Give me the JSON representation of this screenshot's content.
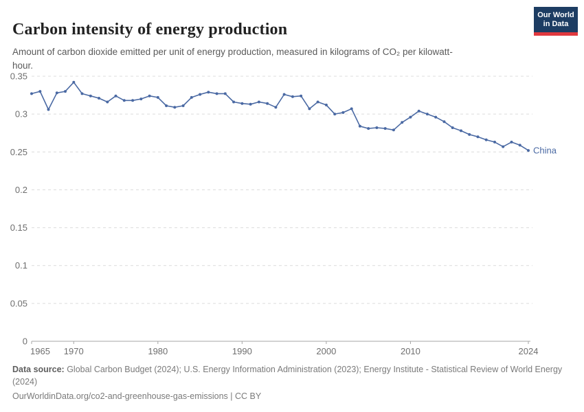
{
  "header": {
    "title": "Carbon intensity of energy production",
    "subtitle": "Amount of carbon dioxide emitted per unit of energy production, measured in kilograms of CO₂ per kilowatt-hour.",
    "logo": {
      "line1": "Our World",
      "line2": "in Data"
    }
  },
  "chart_data": {
    "type": "line",
    "title": "Carbon intensity of energy production",
    "unit": "kilograms of CO₂ per kilowatt-hour",
    "xlabel": "",
    "ylabel": "",
    "xlim": [
      1965,
      2024
    ],
    "ylim": [
      0,
      0.35
    ],
    "x_ticks": [
      1965,
      1970,
      1980,
      1990,
      2000,
      2010,
      2024
    ],
    "y_ticks": [
      0,
      0.05,
      0.1,
      0.15,
      0.2,
      0.25,
      0.3,
      0.35
    ],
    "grid": "horizontal-dashed",
    "legend_position": "end-of-line",
    "series": [
      {
        "name": "China",
        "color": "#4a69a3",
        "x": [
          1965,
          1966,
          1967,
          1968,
          1969,
          1970,
          1971,
          1972,
          1973,
          1974,
          1975,
          1976,
          1977,
          1978,
          1979,
          1980,
          1981,
          1982,
          1983,
          1984,
          1985,
          1986,
          1987,
          1988,
          1989,
          1990,
          1991,
          1992,
          1993,
          1994,
          1995,
          1996,
          1997,
          1998,
          1999,
          2000,
          2001,
          2002,
          2003,
          2004,
          2005,
          2006,
          2007,
          2008,
          2009,
          2010,
          2011,
          2012,
          2013,
          2014,
          2015,
          2016,
          2017,
          2018,
          2019,
          2020,
          2021,
          2022,
          2023,
          2024
        ],
        "values": [
          0.327,
          0.33,
          0.306,
          0.328,
          0.33,
          0.342,
          0.327,
          0.324,
          0.321,
          0.316,
          0.324,
          0.318,
          0.318,
          0.32,
          0.324,
          0.322,
          0.311,
          0.309,
          0.311,
          0.322,
          0.326,
          0.329,
          0.327,
          0.327,
          0.316,
          0.314,
          0.313,
          0.316,
          0.314,
          0.309,
          0.326,
          0.323,
          0.324,
          0.307,
          0.316,
          0.312,
          0.3,
          0.302,
          0.307,
          0.284,
          0.281,
          0.282,
          0.281,
          0.279,
          0.289,
          0.296,
          0.304,
          0.3,
          0.296,
          0.29,
          0.282,
          0.278,
          0.273,
          0.27,
          0.266,
          0.263,
          0.257,
          0.263,
          0.259,
          0.252
        ]
      }
    ]
  },
  "footer": {
    "source_label": "Data source:",
    "source_text": " Global Carbon Budget (2024); U.S. Energy Information Administration (2023); Energy Institute - Statistical Review of World Energy (2024)",
    "link_text": "OurWorldinData.org/co2-and-greenhouse-gas-emissions | CC BY"
  },
  "colors": {
    "series_line": "#4a69a3",
    "gridline": "#dcdcdc",
    "axis": "#a5a5a5",
    "logo_bg": "#1d3d63",
    "logo_stripe": "#e0393e"
  }
}
